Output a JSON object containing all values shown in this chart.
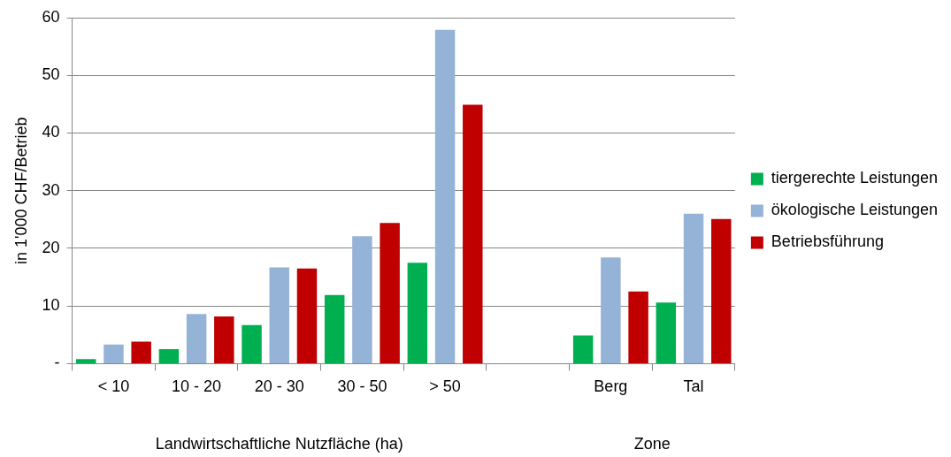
{
  "chart_data": {
    "type": "bar",
    "ylabel": "in 1'000 CHF/Betrieb",
    "categories": [
      "< 10",
      "10 - 20",
      "20 - 30",
      "30 - 50",
      "> 50",
      null,
      "Berg",
      "Tal"
    ],
    "series": [
      {
        "name": "tiergerechte Leistungen",
        "color": "#00b050",
        "values": [
          0.8,
          2.5,
          6.7,
          11.9,
          17.5,
          null,
          4.9,
          10.6
        ]
      },
      {
        "name": "ökologische Leistungen",
        "color": "#95b3d7",
        "values": [
          3.3,
          8.6,
          16.7,
          22.1,
          57.9,
          null,
          18.4,
          26
        ]
      },
      {
        "name": "Betriebsführung",
        "color": "#c00000",
        "values": [
          3.8,
          8.2,
          16.5,
          24.4,
          44.9,
          null,
          12.5,
          25.1
        ]
      }
    ],
    "ylim": [
      0,
      60
    ],
    "yticks": [
      {
        "value": 0,
        "label": "-"
      },
      10,
      20,
      30,
      40,
      50,
      60
    ],
    "grid": "y",
    "legend": "right",
    "annotations": [
      "Landwirtschaftliche Nutzfläche (ha)",
      "Zone"
    ]
  }
}
